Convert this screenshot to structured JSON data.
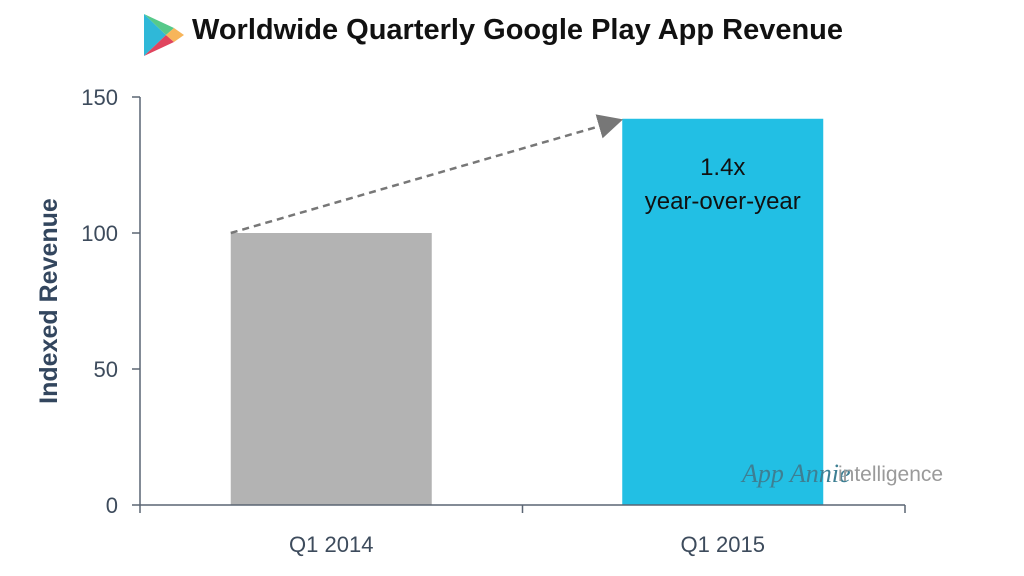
{
  "title": "Worldwide Quarterly Google Play App Revenue",
  "logo": {
    "icon": "google-play-icon"
  },
  "watermark": {
    "brand": "App Annie",
    "suffix": "intelligence"
  },
  "colors": {
    "q1_2014": "#b3b3b3",
    "q1_2015": "#22bfe4",
    "arrow": "#777777",
    "axis": "#5a6573"
  },
  "chart_data": {
    "type": "bar",
    "title": "Worldwide Quarterly Google Play App Revenue",
    "xlabel": "",
    "ylabel": "Indexed Revenue",
    "categories": [
      "Q1 2014",
      "Q1 2015"
    ],
    "values": [
      100,
      142
    ],
    "ylim": [
      0,
      150
    ],
    "yticks": [
      "0",
      "50",
      "100",
      "150"
    ],
    "grid": false,
    "annotation": {
      "line1": "1.4x",
      "line2": "year-over-year",
      "arrow": "dashed from Q1 2014 top to Q1 2015 top"
    }
  }
}
